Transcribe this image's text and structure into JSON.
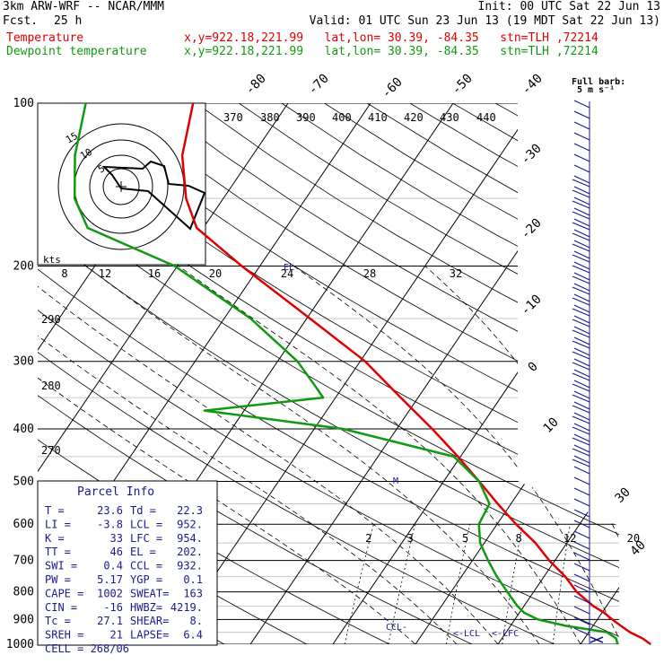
{
  "header": {
    "model": "3km ARW-WRF -- NCAR/MMM",
    "fcst_label": "Fcst.",
    "fcst_value": "25 h",
    "init": "Init: 00 UTC Sat 22 Jun 13",
    "valid": "Valid: 01 UTC Sun 23 Jun 13 (19 MDT Sat 22 Jun 13)",
    "temp_label": "Temperature",
    "temp_loc": "x,y=922.18,221.99   lat,lon= 30.39, -84.35   stn=TLH ,72214",
    "dew_label": "Dewpoint temperature",
    "dew_loc": "x,y=922.18,221.99   lat,lon= 30.39, -84.35   stn=TLH ,72214"
  },
  "colors": {
    "temperature": "#e00000",
    "dewpoint": "#119a11",
    "info": "#1a1a90",
    "barbs": "#1a1a90",
    "isotherm": "#000000",
    "isobar": "#000000"
  },
  "chart_data": {
    "type": "line",
    "title": "",
    "xlabel": "",
    "ylabel": "",
    "y_scale": "log",
    "ylim": [
      1000,
      100
    ],
    "pressure_ticks": [
      "100",
      "200",
      "300",
      "400",
      "500",
      "600",
      "700",
      "800",
      "900",
      "1000"
    ],
    "isotherm_labels": [
      "-80",
      "-70",
      "-60",
      "-50",
      "-40",
      "-30",
      "-20",
      "-10",
      "0",
      "10",
      "30",
      "40"
    ],
    "theta_labels": [
      "370",
      "380",
      "390",
      "400",
      "410",
      "420",
      "430",
      "440",
      "290",
      "280",
      "270"
    ],
    "mixing_ratio_labels": [
      "2",
      "3",
      "5",
      "8",
      "12",
      "20"
    ],
    "series": [
      {
        "name": "Temperature",
        "pressure": [
          1000,
          975,
          950,
          925,
          900,
          875,
          850,
          800,
          750,
          700,
          650,
          600,
          550,
          500,
          450,
          400,
          350,
          300,
          250,
          200,
          170,
          150,
          125,
          100
        ],
        "temperature": [
          28.5,
          27.0,
          25.0,
          23.4,
          21.8,
          20.3,
          18.4,
          15.2,
          12.6,
          9.3,
          6.2,
          2.3,
          -1.6,
          -5.7,
          -10.3,
          -15.7,
          -22.1,
          -29.4,
          -39.6,
          -52.2,
          -60.8,
          -64.5,
          -68.5,
          -71.5
        ]
      },
      {
        "name": "Dewpoint temperature",
        "pressure": [
          1000,
          975,
          950,
          925,
          900,
          875,
          850,
          800,
          750,
          700,
          650,
          600,
          550,
          500,
          450,
          400,
          370,
          350,
          330,
          300,
          250,
          200,
          170,
          150,
          125,
          100
        ],
        "temperature": [
          24.5,
          23.8,
          22.2,
          16.8,
          12.8,
          10.6,
          9.2,
          6.8,
          4.3,
          1.9,
          -0.5,
          -2.2,
          -2.6,
          -5.7,
          -10.8,
          -26.5,
          -44.8,
          -31.5,
          -33.8,
          -37.6,
          -46.8,
          -60.3,
          -74.0,
          -78.0,
          -81.5,
          -84.5
        ]
      }
    ],
    "annotations": [
      "CCL",
      "LCL",
      "LFC",
      "EL",
      "M"
    ]
  },
  "hodograph": {
    "speed_unit": "kts",
    "speed_labels": [
      "8",
      "12",
      "16",
      "20",
      "24",
      "28",
      "32"
    ],
    "ring_labels": [
      "15",
      "10",
      "5"
    ]
  },
  "wind_barbs": {
    "header_line1": "Full barb:",
    "header_line2": "5 m s⁻¹"
  },
  "parcel_info": {
    "title": "Parcel Info",
    "rows": [
      [
        "T  =",
        "23.6",
        "Td =",
        "22.3"
      ],
      [
        "LI =",
        "-3.8",
        "LCL =",
        "952."
      ],
      [
        "K  =",
        "33",
        "LFC =",
        "954."
      ],
      [
        "TT =",
        "46",
        "EL  =",
        "202."
      ],
      [
        "SWI =",
        "0.4",
        "CCL =",
        "932."
      ],
      [
        "PW =",
        "5.17",
        "YGP =",
        "0.1"
      ],
      [
        "CAPE =",
        "1002",
        "SWEAT=",
        "163"
      ],
      [
        "CIN  =",
        "-16",
        "HWBZ=",
        "4219."
      ],
      [
        "Tc  =",
        "27.1",
        "SHEAR=",
        "8."
      ],
      [
        "SREH =",
        "21",
        "LAPSE=",
        "6.4"
      ]
    ],
    "footer": "CELL = 268/06"
  }
}
